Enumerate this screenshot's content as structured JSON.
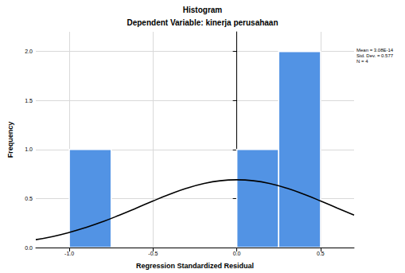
{
  "chart_data": {
    "type": "histogram",
    "title": "Histogram",
    "subtitle": "Dependent Variable: kinerja perusahaan",
    "x_label": "Regression Standardized Residual",
    "y_label": "Frequency",
    "bins": [
      -1.0,
      -0.75,
      -0.5,
      -0.25,
      0.0,
      0.25,
      0.5
    ],
    "counts": [
      1,
      0,
      0,
      0,
      1,
      2
    ],
    "color": "#5293e4",
    "curve": {
      "color": "#000000",
      "x": [
        -1.2,
        -1.1,
        -1.0,
        -0.9,
        -0.8,
        -0.7,
        -0.6,
        -0.5,
        -0.4,
        -0.3,
        -0.2,
        -0.1,
        0.0,
        0.1,
        0.2,
        0.3,
        0.4,
        0.5,
        0.6,
        0.7
      ],
      "y": [
        0.08,
        0.112,
        0.154,
        0.205,
        0.264,
        0.331,
        0.402,
        0.475,
        0.543,
        0.604,
        0.651,
        0.681,
        0.691,
        0.681,
        0.651,
        0.604,
        0.543,
        0.475,
        0.402,
        0.331
      ]
    },
    "annotations": [
      "Mean = 3.08E-14",
      "Std. Dev. = 0.577",
      "N = 4"
    ],
    "xlim": [
      -1.2,
      0.7
    ],
    "xticks": [
      {
        "value": -1.0,
        "label": "-1.0"
      },
      {
        "value": -0.5,
        "label": "-0.5"
      },
      {
        "value": 0.0,
        "label": "0.0"
      },
      {
        "value": 0.5,
        "label": "0.5"
      }
    ],
    "ylim": [
      0,
      2.2
    ],
    "yticks": [
      {
        "value": 0,
        "label": "0.0"
      },
      {
        "value": 0.5,
        "label": "0.5"
      },
      {
        "value": 1.0,
        "label": "1.0"
      },
      {
        "value": 1.5,
        "label": "1.5"
      },
      {
        "value": 2.0,
        "label": "2.0"
      }
    ],
    "grid": true
  }
}
